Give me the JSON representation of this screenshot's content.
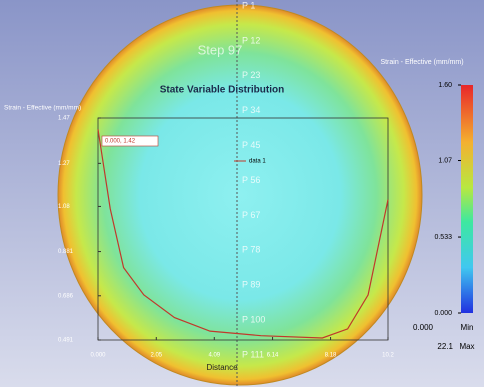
{
  "viewport": {
    "step": "Step 97",
    "point_labels": [
      "P 1",
      "P 12",
      "P 23",
      "P 34",
      "P 45",
      "P 56",
      "P 67",
      "P 78",
      "P 89",
      "P 100",
      "P 111"
    ],
    "legend": {
      "title": "Strain - Effective (mm/mm)",
      "ticks": [
        {
          "value": 1.6,
          "label": "1.60"
        },
        1.07,
        0.533,
        {
          "value": 0,
          "label": "0.000"
        }
      ],
      "min_value": "0.000",
      "min_label": "Min",
      "max_value": "22.1",
      "max_label": "Max"
    }
  },
  "chart_data": {
    "type": "line",
    "title": "State Variable Distribution",
    "ylabel": "Strain - Effective (mm/mm)",
    "xlabel": "Distance",
    "x": [
      0,
      0.43,
      0.9,
      1.61,
      2.69,
      3.94,
      5.73,
      7.89,
      8.78,
      9.5,
      10.2
    ],
    "series": [
      {
        "name": "data 1",
        "color": "#c0392b",
        "values": [
          1.42,
          1.07,
          0.81,
          0.69,
          0.59,
          0.53,
          0.51,
          0.5,
          0.54,
          0.69,
          1.11
        ]
      }
    ],
    "xlim": [
      0,
      10.2
    ],
    "ylim": [
      0.491,
      1.47
    ],
    "xticks": [
      {
        "value": 0,
        "label": "0.000"
      },
      2.05,
      4.09,
      6.14,
      8.18,
      10.2
    ],
    "yticks": [
      0.491,
      0.686,
      0.881,
      1.08,
      1.27,
      1.47
    ],
    "annotation": "0.000, 1.42"
  }
}
